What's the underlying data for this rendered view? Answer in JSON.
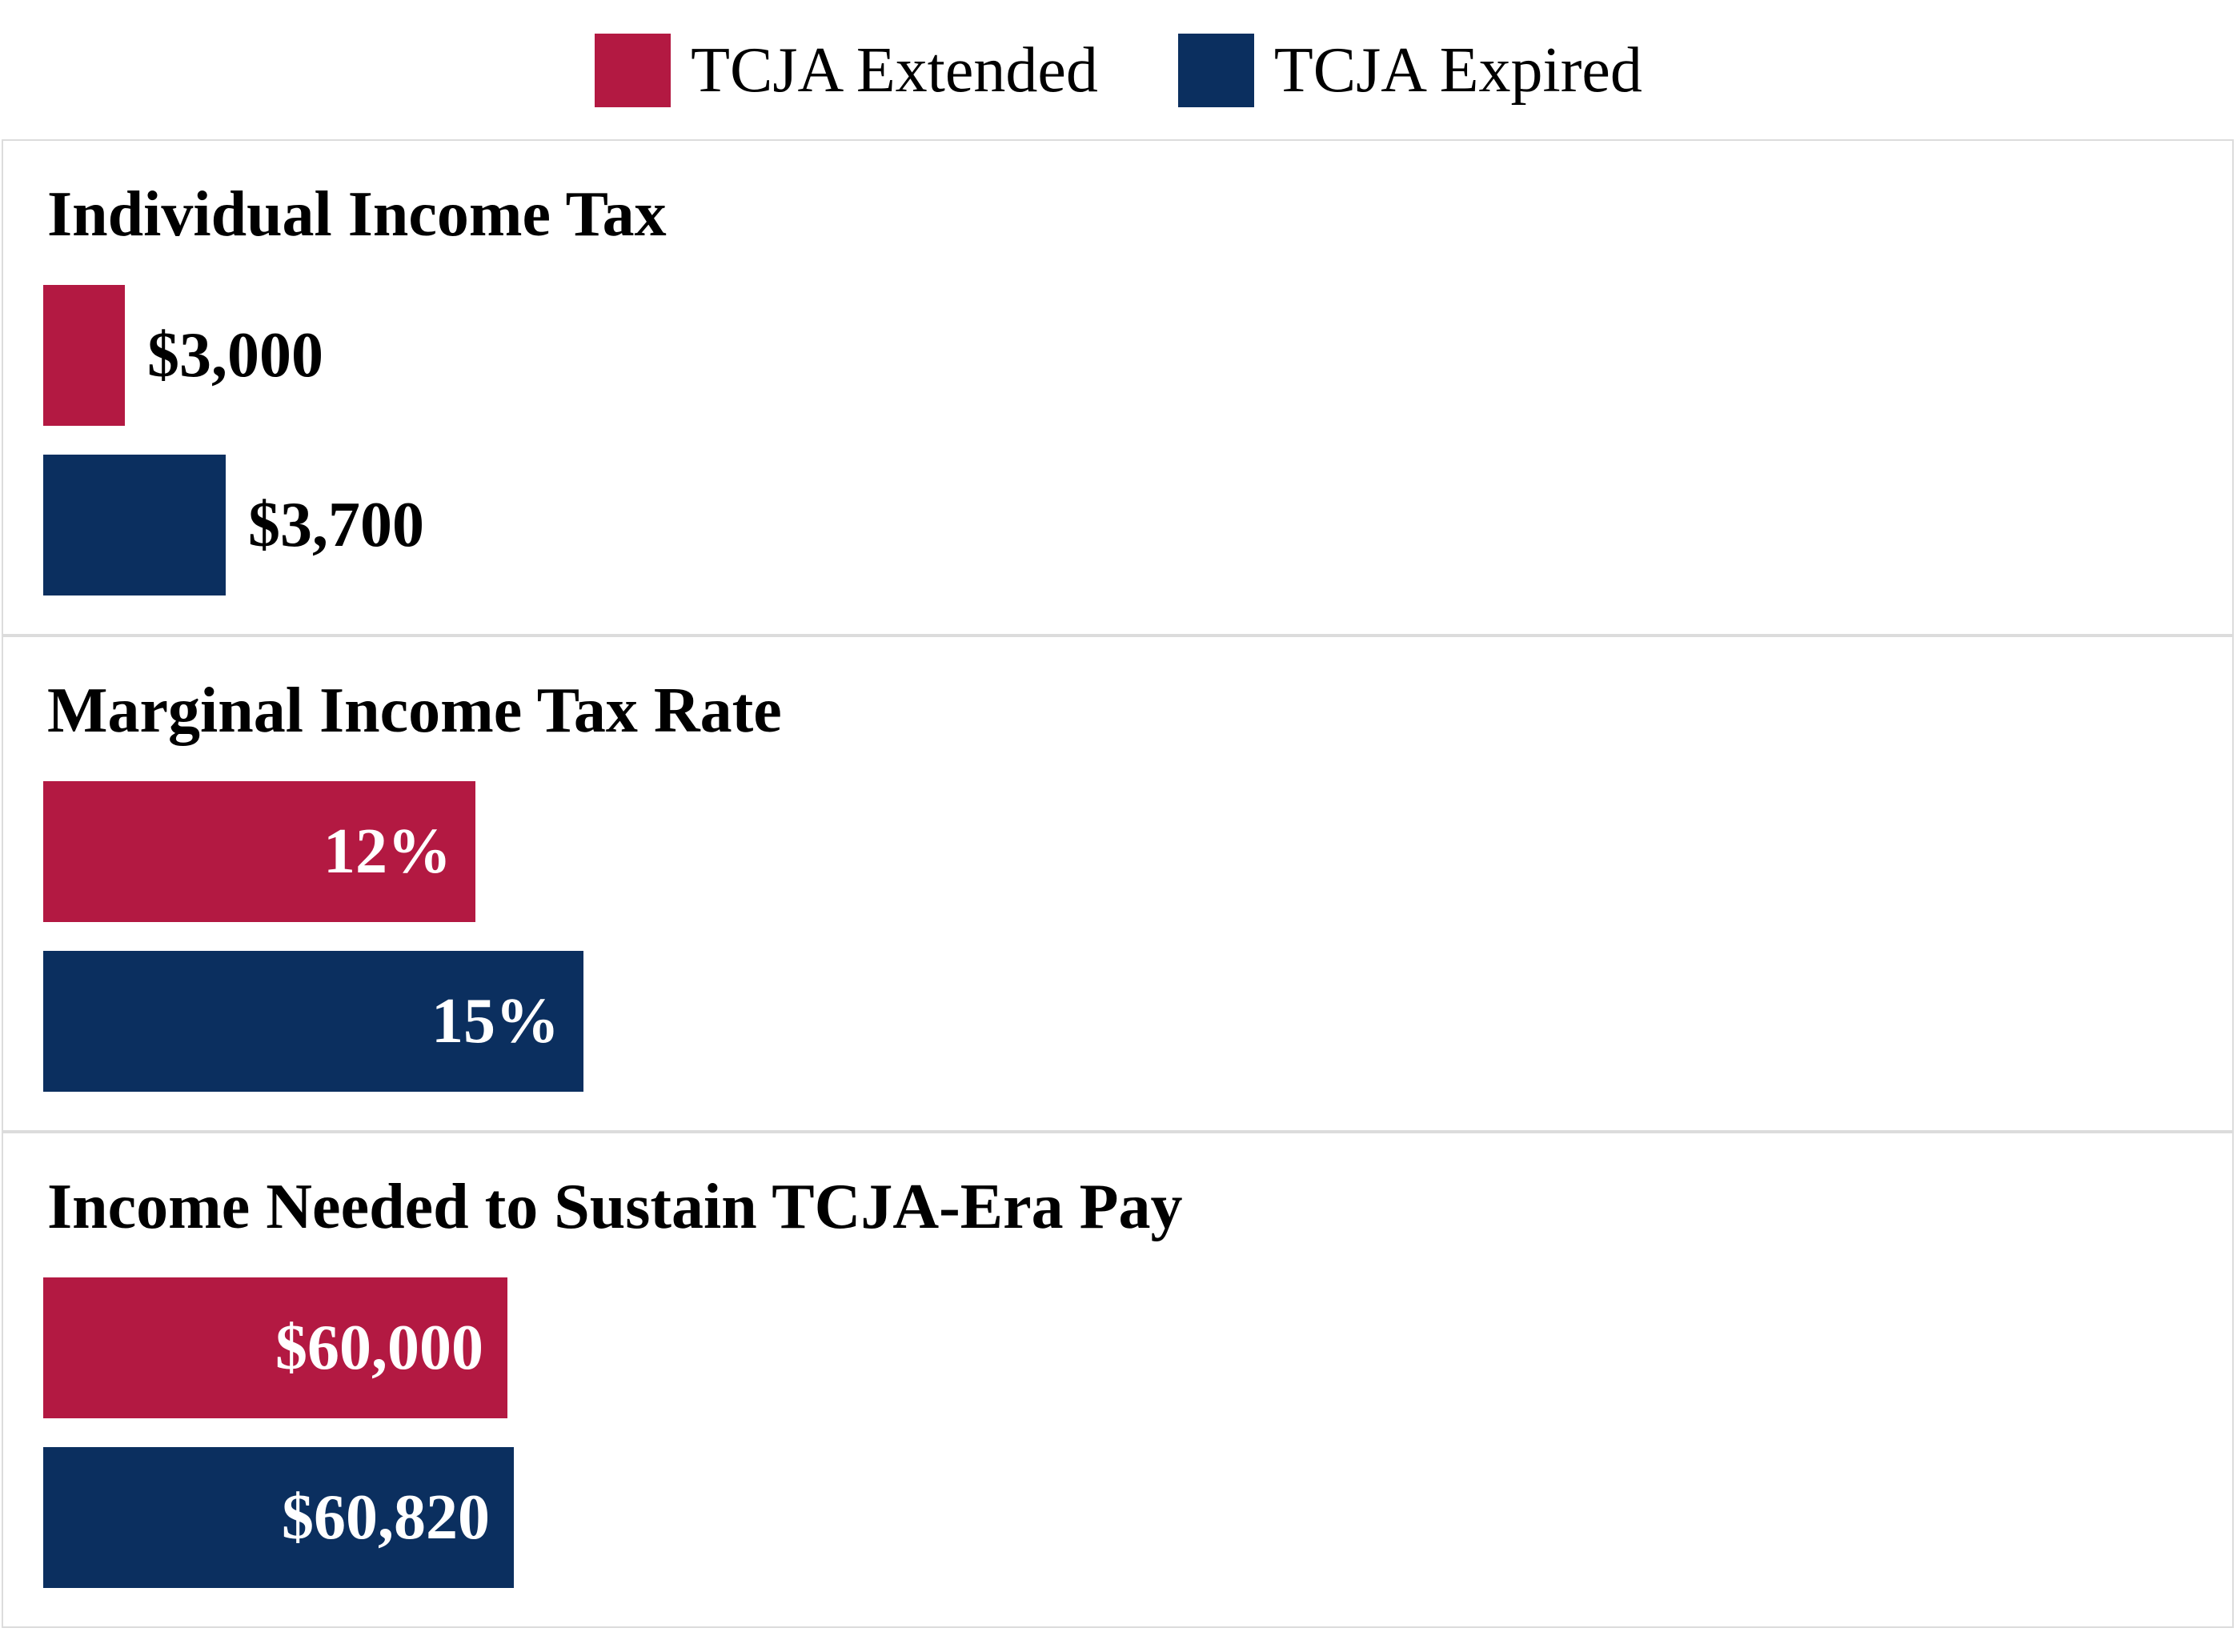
{
  "legend": [
    {
      "name": "TCJA Extended",
      "color": "#b31942"
    },
    {
      "name": "TCJA Expired",
      "color": "#0b2f5f"
    }
  ],
  "chart_data": [
    {
      "type": "bar",
      "title": "Individual Income Tax",
      "categories": [
        "TCJA Extended",
        "TCJA Expired"
      ],
      "values": [
        3000,
        3700
      ],
      "labels": [
        "$3,000",
        "$3,700"
      ],
      "label_position": "outside"
    },
    {
      "type": "bar",
      "title": "Marginal Income Tax Rate",
      "categories": [
        "TCJA Extended",
        "TCJA Expired"
      ],
      "values": [
        12,
        15
      ],
      "labels": [
        "12%",
        "15%"
      ],
      "label_position": "inside"
    },
    {
      "type": "bar",
      "title": "Income Needed to Sustain TCJA-Era Pay",
      "categories": [
        "TCJA Extended",
        "TCJA Expired"
      ],
      "values": [
        60000,
        60820
      ],
      "labels": [
        "$60,000",
        "$60,820"
      ],
      "label_position": "inside"
    }
  ]
}
